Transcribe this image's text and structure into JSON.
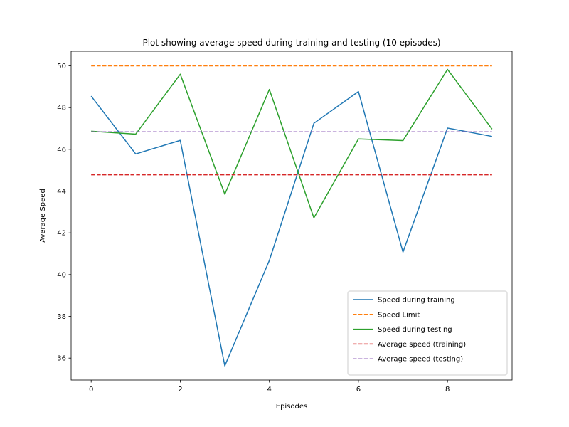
{
  "chart_data": {
    "type": "line",
    "title": "Plot showing average speed during training and testing (10 episodes)",
    "xlabel": "Episodes",
    "ylabel": "Average Speed",
    "xlim": [
      -0.45,
      9.45
    ],
    "ylim": [
      34.95,
      50.7
    ],
    "xticks": [
      0,
      2,
      4,
      6,
      8
    ],
    "yticks": [
      36,
      38,
      40,
      42,
      44,
      46,
      48,
      50
    ],
    "grid": false,
    "legend_position": "lower-right",
    "x": [
      0,
      1,
      2,
      3,
      4,
      5,
      6,
      7,
      8,
      9
    ],
    "series": [
      {
        "name": "Speed during training",
        "color": "#1f77b4",
        "style": "solid",
        "values": [
          48.55,
          45.78,
          46.43,
          35.63,
          40.68,
          47.25,
          48.77,
          41.08,
          47.02,
          46.62
        ]
      },
      {
        "name": "Speed Limit",
        "color": "#ff7f0e",
        "style": "dashed",
        "values": [
          50,
          50,
          50,
          50,
          50,
          50,
          50,
          50,
          50,
          50
        ]
      },
      {
        "name": "Speed during testing",
        "color": "#2ca02c",
        "style": "solid",
        "values": [
          46.87,
          46.73,
          49.6,
          43.85,
          48.87,
          42.72,
          46.5,
          46.42,
          49.83,
          46.97
        ]
      },
      {
        "name": "Average speed (training)",
        "color": "#d62728",
        "style": "dashed",
        "values": [
          44.78,
          44.78,
          44.78,
          44.78,
          44.78,
          44.78,
          44.78,
          44.78,
          44.78,
          44.78
        ]
      },
      {
        "name": "Average speed (testing)",
        "color": "#9467bd",
        "style": "dashed",
        "values": [
          46.84,
          46.84,
          46.84,
          46.84,
          46.84,
          46.84,
          46.84,
          46.84,
          46.84,
          46.84
        ]
      }
    ]
  }
}
